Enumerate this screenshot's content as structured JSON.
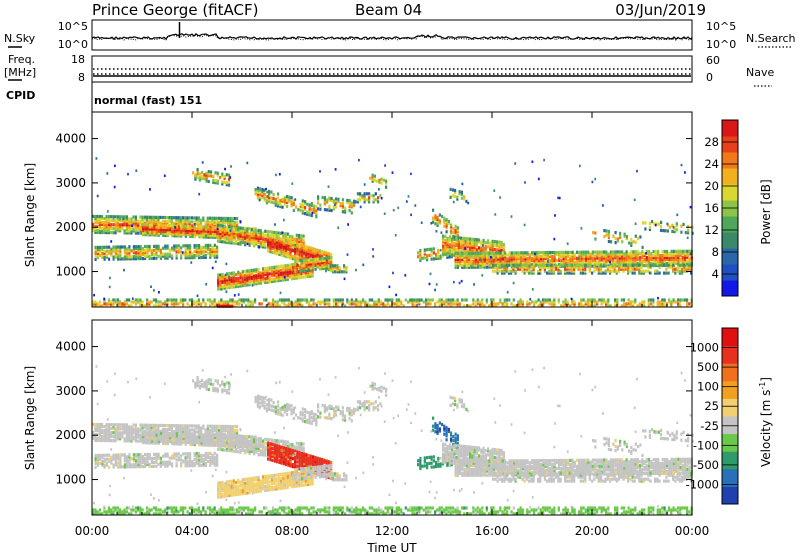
{
  "header": {
    "radar": "Prince George (fitACF)",
    "beam": "Beam 04",
    "date": "03/Jun/2019"
  },
  "noise_panel": {
    "left_label": "N.Sky",
    "right_label": "N.Search",
    "ticks": [
      "10^5",
      "10^0"
    ]
  },
  "freq_panel": {
    "left_label_1": "Freq.",
    "left_label_2": "[MHz]",
    "left_ticks": [
      "18",
      "8"
    ],
    "right_label": "Nave",
    "right_ticks": [
      "60",
      "0"
    ]
  },
  "cpid_panel": {
    "label": "CPID",
    "mode": "normal (fast) 151"
  },
  "chart_data": [
    {
      "type": "heatmap",
      "name": "power",
      "ylabel": "Slant Range [km]",
      "yticks": [
        1000,
        2000,
        3000,
        4000
      ],
      "ylim": [
        200,
        4600
      ],
      "xlim_hours": [
        0,
        24
      ],
      "colorbar": {
        "label": "Power [dB]",
        "range": [
          0,
          32
        ],
        "ticks": [
          "4",
          "8",
          "12",
          "16",
          "20",
          "24",
          "28"
        ],
        "colors": [
          "#1418e6",
          "#1f4fc0",
          "#2a66a8",
          "#3a8a6a",
          "#4fa85a",
          "#8cc44a",
          "#d8d830",
          "#f2b01e",
          "#f07a1a",
          "#e8401a",
          "#d81818"
        ]
      }
    },
    {
      "type": "heatmap",
      "name": "velocity",
      "ylabel": "Slant Range [km]",
      "yticks": [
        1000,
        2000,
        3000,
        4000
      ],
      "ylim": [
        200,
        4600
      ],
      "xlim_hours": [
        0,
        24
      ],
      "xticks": [
        "00:00",
        "04:00",
        "08:00",
        "12:00",
        "16:00",
        "20:00",
        "00:00"
      ],
      "xlabel": "Time UT",
      "colorbar": {
        "label": "Velocity [m s",
        "label_sup": "-1",
        "label_end": "]",
        "ticks": [
          "1000",
          "500",
          "100",
          "25",
          "-25",
          "-100",
          "-500",
          "-1000"
        ],
        "colors": [
          "#2040b0",
          "#2a70b8",
          "#2f9a6a",
          "#6ac84a",
          "#c4c4c4",
          "#f0d070",
          "#f0a020",
          "#f07020",
          "#e83020",
          "#e01010"
        ]
      }
    }
  ]
}
